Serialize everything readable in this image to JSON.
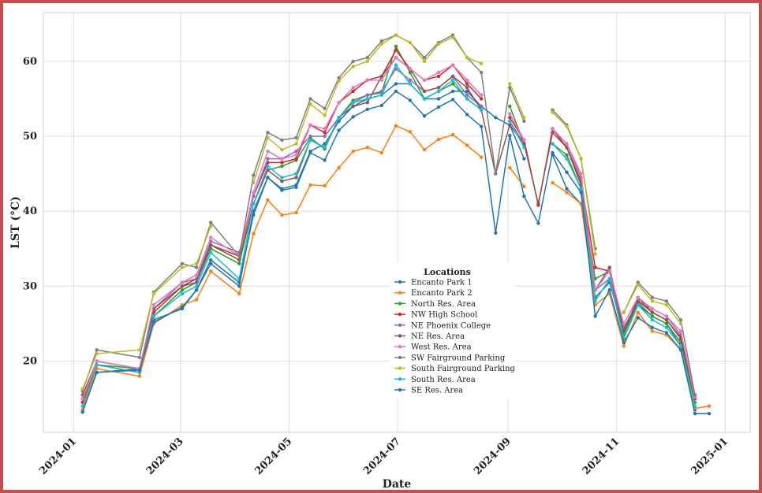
{
  "chart_data": {
    "type": "line",
    "title": "",
    "xlabel": "Date",
    "ylabel": "LST (°C)",
    "ylim": [
      10.5,
      66.5
    ],
    "xlim": [
      "2023-12-15",
      "2025-01-15"
    ],
    "grid": true,
    "legend_title": "Locations",
    "legend_position": "center",
    "x_ticks": [
      "2024-01",
      "2024-03",
      "2024-05",
      "2024-07",
      "2024-09",
      "2024-11",
      "2025-01"
    ],
    "x_tick_dates": [
      "2024-01-01",
      "2024-03-01",
      "2024-05-01",
      "2024-07-01",
      "2024-09-01",
      "2024-11-01",
      "2025-01-01"
    ],
    "y_ticks": [
      20,
      30,
      40,
      50,
      60
    ],
    "x": [
      "2024-01-06",
      "2024-01-14",
      "2024-02-07",
      "2024-02-15",
      "2024-03-02",
      "2024-03-10",
      "2024-03-18",
      "2024-04-03",
      "2024-04-11",
      "2024-04-19",
      "2024-04-27",
      "2024-05-05",
      "2024-05-13",
      "2024-05-21",
      "2024-05-29",
      "2024-06-06",
      "2024-06-14",
      "2024-06-22",
      "2024-06-30",
      "2024-07-08",
      "2024-07-16",
      "2024-07-24",
      "2024-08-01",
      "2024-08-09",
      "2024-08-17",
      "2024-08-25",
      "2024-09-02",
      "2024-09-10",
      "2024-09-18",
      "2024-09-26",
      "2024-10-04",
      "2024-10-12",
      "2024-10-20",
      "2024-10-28",
      "2024-11-05",
      "2024-11-13",
      "2024-11-21",
      "2024-11-29",
      "2024-12-07",
      "2024-12-15",
      "2024-12-23"
    ],
    "series": [
      {
        "name": "Encanto Park 1",
        "color": "#1f77b4",
        "values": [
          13.5,
          18.5,
          19,
          25.5,
          27,
          29.5,
          33,
          30,
          40,
          44.5,
          43,
          43.5,
          48,
          49,
          52,
          54,
          55,
          55.5,
          57,
          57,
          55,
          55,
          56,
          56,
          54,
          52.5,
          51.5,
          47,
          null,
          47.5,
          43,
          41,
          28.5,
          30.5,
          24,
          27.5,
          26,
          25,
          22,
          13.5,
          null
        ]
      },
      {
        "name": "Encanto Park 2",
        "color": "#ff7f0e",
        "values": [
          13.5,
          19,
          18,
          25,
          27.5,
          28.2,
          32,
          29,
          37,
          41.5,
          39.5,
          39.8,
          43.5,
          43.4,
          45.8,
          48,
          48.5,
          47.8,
          51.4,
          50.6,
          48.2,
          49.6,
          50.2,
          48.8,
          47.2,
          null,
          45.8,
          43.3,
          null,
          43.8,
          42.5,
          41,
          27.5,
          29,
          22,
          26.5,
          24,
          23.5,
          21.5,
          13.7,
          14
        ]
      },
      {
        "name": "North Res. Area",
        "color": "#2ca02c",
        "values": [
          14,
          19.5,
          19,
          26,
          29.5,
          30.5,
          35,
          33,
          41,
          45.5,
          46,
          46.8,
          49.8,
          48.3,
          52.5,
          54.8,
          55.5,
          55.8,
          62,
          58.5,
          55,
          56,
          57,
          55,
          53.5,
          null,
          54,
          49,
          null,
          49,
          47.5,
          43,
          31,
          32,
          23.5,
          27.8,
          26,
          25,
          22.5,
          14.5,
          null
        ]
      },
      {
        "name": "NW High School",
        "color": "#d62728",
        "values": [
          14.5,
          19.5,
          18.5,
          26.5,
          30,
          31,
          35.5,
          34,
          42,
          46.5,
          46.5,
          47,
          51.5,
          50.5,
          54.5,
          56,
          57.5,
          58,
          61.5,
          59,
          57.5,
          58,
          59.5,
          57,
          55,
          null,
          52.5,
          49.5,
          40.8,
          51,
          48.5,
          44,
          32.5,
          32,
          24,
          28.5,
          26.5,
          25.5,
          23,
          15,
          null
        ]
      },
      {
        "name": "NE Phoenix College",
        "color": "#9467bd",
        "values": [
          15,
          20,
          19,
          27,
          30.5,
          31,
          36,
          34.5,
          42,
          47,
          47,
          48,
          50,
          50,
          52.5,
          54.5,
          55.5,
          56,
          59,
          57.5,
          56,
          56.5,
          58,
          55.5,
          54,
          null,
          52,
          49,
          null,
          51,
          49,
          44.5,
          29.5,
          31,
          24.5,
          28,
          27,
          26,
          23.5,
          15.2,
          null
        ]
      },
      {
        "name": "NE Res. Area",
        "color": "#8c564b",
        "values": [
          15.5,
          20,
          19,
          27,
          30,
          30.5,
          35.5,
          33.5,
          41,
          45.5,
          44,
          44.5,
          49.5,
          48.5,
          52.5,
          54,
          54.5,
          58,
          60.5,
          59,
          56,
          56.5,
          58,
          56.5,
          53.5,
          45,
          51.5,
          49,
          41,
          50.5,
          48.5,
          43.5,
          29.5,
          32.5,
          24,
          28,
          26.5,
          25.5,
          23.2,
          15.5,
          null
        ]
      },
      {
        "name": "West Res. Area",
        "color": "#e377c2",
        "values": [
          15,
          20,
          19,
          27.5,
          30.5,
          31.5,
          36.5,
          34,
          42.5,
          48,
          47,
          47.5,
          51.5,
          51,
          54.5,
          56.5,
          57.5,
          57.5,
          60.5,
          59,
          57.5,
          58.5,
          59.5,
          57.5,
          55.5,
          null,
          53,
          49.5,
          null,
          51,
          49,
          45,
          29.5,
          32,
          25,
          28.5,
          27,
          26,
          24,
          15.2,
          null
        ]
      },
      {
        "name": "SW Fairground Parking",
        "color": "#7f7f7f",
        "values": [
          16,
          21.5,
          20.5,
          29.2,
          33,
          32.5,
          38.5,
          34,
          44.8,
          50.5,
          49.5,
          49.8,
          55,
          53.7,
          57.8,
          60,
          60.5,
          62.7,
          63.5,
          62.5,
          60.5,
          62.5,
          63.5,
          60.5,
          58.5,
          45,
          56.5,
          52,
          null,
          53.5,
          51.5,
          47,
          35,
          null,
          26.5,
          30.5,
          28.5,
          28,
          25.5,
          15.5,
          null
        ]
      },
      {
        "name": " South Fairground Parking",
        "color": "#bcbd22",
        "values": [
          16.3,
          21,
          21.5,
          29,
          32.5,
          33,
          38,
          null,
          43.8,
          49.8,
          48.2,
          49,
          54.3,
          52.8,
          57.4,
          59.3,
          60,
          62.3,
          63.5,
          62.5,
          60,
          62.3,
          63.2,
          60.5,
          59.7,
          null,
          57,
          52.5,
          null,
          53.2,
          51.3,
          47,
          34.3,
          null,
          26.5,
          30.2,
          28,
          27.5,
          25,
          null,
          null
        ]
      },
      {
        "name": "South Res. Area",
        "color": "#17becf",
        "values": [
          14,
          19.5,
          18.5,
          26,
          29,
          30,
          34.5,
          31,
          41,
          46,
          44.5,
          45,
          49.5,
          48.5,
          52.5,
          54.5,
          55,
          55.5,
          59.5,
          57,
          55,
          56,
          57.5,
          55,
          53.5,
          null,
          52,
          48.5,
          null,
          49,
          47,
          43,
          28,
          31,
          23,
          27.5,
          25.5,
          24.5,
          22,
          14,
          null
        ]
      },
      {
        "name": "SE Res. Area",
        "color": "#1f77b4",
        "values": [
          13.2,
          18.5,
          18.8,
          25.2,
          27.2,
          29.5,
          33.5,
          30.5,
          39.5,
          44.5,
          42.8,
          43.2,
          47.8,
          46.8,
          50.8,
          52.6,
          53.6,
          54.1,
          56,
          54.8,
          52.7,
          53.9,
          54.9,
          52.9,
          51.3,
          37.1,
          50.1,
          42,
          38.4,
          47.8,
          45.2,
          42.5,
          26,
          29.5,
          22.5,
          25.8,
          24.5,
          23.8,
          21.5,
          13,
          13
        ]
      }
    ]
  }
}
